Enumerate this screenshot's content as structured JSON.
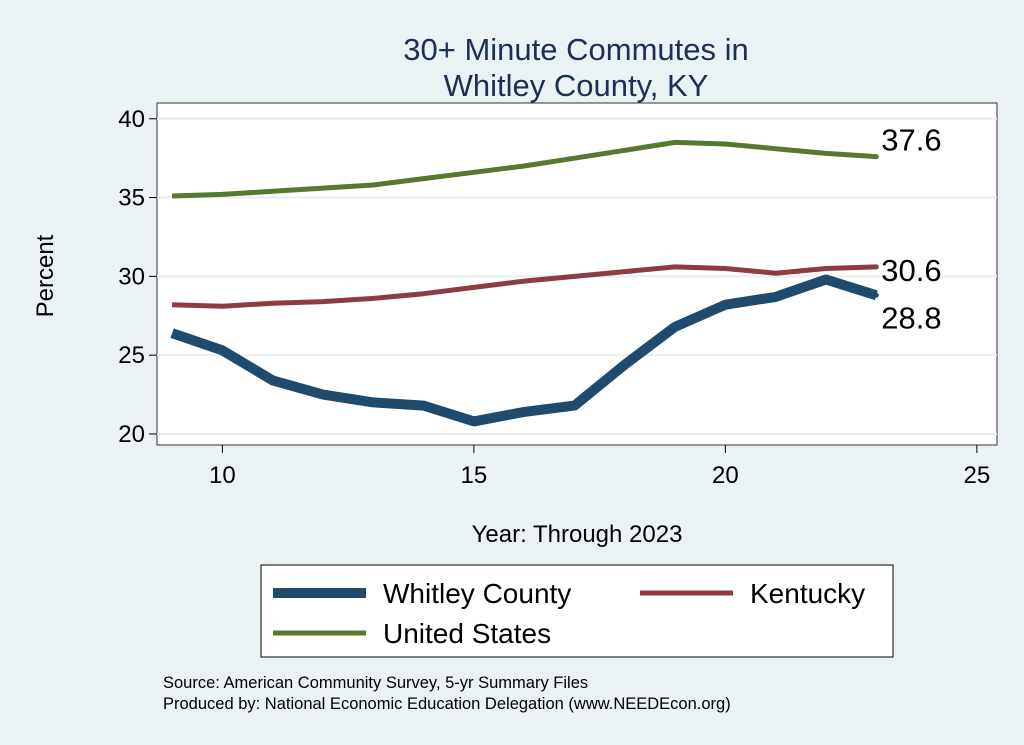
{
  "chart_data": {
    "type": "line",
    "title": [
      "30+ Minute Commutes in",
      "Whitley County, KY"
    ],
    "xlabel": "Year: Through 2023",
    "ylabel": "Percent",
    "xlim": [
      8.7,
      25.4
    ],
    "ylim": [
      19.3,
      41.0
    ],
    "xticks": [
      10,
      15,
      20,
      25
    ],
    "yticks": [
      20,
      25,
      30,
      35,
      40
    ],
    "grid": true,
    "series": [
      {
        "name": "United States",
        "color": "#56782f",
        "line_weight": "medium",
        "x": [
          9,
          10,
          11,
          12,
          13,
          14,
          15,
          16,
          17,
          18,
          19,
          20,
          21,
          22,
          23
        ],
        "y": [
          35.1,
          35.2,
          35.4,
          35.6,
          35.8,
          36.2,
          36.6,
          37.0,
          37.5,
          38.0,
          38.5,
          38.4,
          38.1,
          37.8,
          37.6
        ],
        "end_label": "37.6"
      },
      {
        "name": "Kentucky",
        "color": "#8e3c43",
        "line_weight": "medium",
        "x": [
          9,
          10,
          11,
          12,
          13,
          14,
          15,
          16,
          17,
          18,
          19,
          20,
          21,
          22,
          23
        ],
        "y": [
          28.2,
          28.1,
          28.3,
          28.4,
          28.6,
          28.9,
          29.3,
          29.7,
          30.0,
          30.3,
          30.6,
          30.5,
          30.2,
          30.5,
          30.6
        ],
        "end_label": "30.6"
      },
      {
        "name": "Whitley County",
        "color": "#1f4b6e",
        "line_weight": "thick",
        "x": [
          9,
          10,
          11,
          12,
          13,
          14,
          15,
          16,
          17,
          18,
          19,
          20,
          21,
          22,
          23
        ],
        "y": [
          26.4,
          25.3,
          23.4,
          22.5,
          22.0,
          21.8,
          20.8,
          21.4,
          21.8,
          24.4,
          26.8,
          28.2,
          28.7,
          29.8,
          28.8
        ],
        "end_label": "28.8"
      }
    ],
    "legend": {
      "position": "bottom",
      "entries": [
        "Whitley County",
        "Kentucky",
        "United States"
      ]
    }
  },
  "footer": {
    "source": "Source: American Community Survey, 5-yr Summary Files",
    "produced": "Produced by: National Economic Education Delegation (www.NEEDEcon.org)"
  }
}
